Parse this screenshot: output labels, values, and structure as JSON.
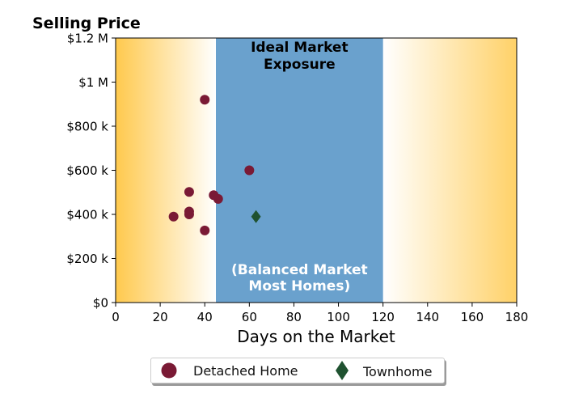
{
  "chart_data": {
    "type": "scatter",
    "title": "Selling Price",
    "xlabel": "Days on the Market",
    "ylabel": "",
    "xlim": [
      0,
      180
    ],
    "ylim": [
      0,
      1200000
    ],
    "x_ticks": [
      0,
      20,
      40,
      60,
      80,
      100,
      120,
      140,
      160,
      180
    ],
    "x_tick_labels": [
      "0",
      "20",
      "40",
      "60",
      "80",
      "100",
      "120",
      "140",
      "160",
      "180"
    ],
    "y_ticks": [
      0,
      200000,
      400000,
      600000,
      800000,
      1000000,
      1200000
    ],
    "y_tick_labels": [
      "$0",
      "$200 k",
      "$400 k",
      "$600 k",
      "$800 k",
      "$1 M",
      "$1.2 M"
    ],
    "grid": false,
    "legend_position": "bottom-center",
    "band": {
      "x_range": [
        45,
        120
      ],
      "color": "#6aa1cd",
      "top_label": "Ideal Market\nExposure",
      "bottom_label": "(Balanced Market\nMost Homes)"
    },
    "background_gradient_color": "#ffc94d",
    "series": [
      {
        "name": "Detached Home",
        "marker": "circle",
        "color": "#7a1a35",
        "points": [
          {
            "x": 40,
            "y": 920000
          },
          {
            "x": 60,
            "y": 600000
          },
          {
            "x": 33,
            "y": 502000
          },
          {
            "x": 44,
            "y": 487000
          },
          {
            "x": 46,
            "y": 470000
          },
          {
            "x": 33,
            "y": 413000
          },
          {
            "x": 33,
            "y": 400000
          },
          {
            "x": 26,
            "y": 390000
          },
          {
            "x": 40,
            "y": 327000
          }
        ]
      },
      {
        "name": "Townhome",
        "marker": "diamond",
        "color": "#1f5230",
        "points": [
          {
            "x": 63,
            "y": 390000
          }
        ]
      }
    ]
  }
}
